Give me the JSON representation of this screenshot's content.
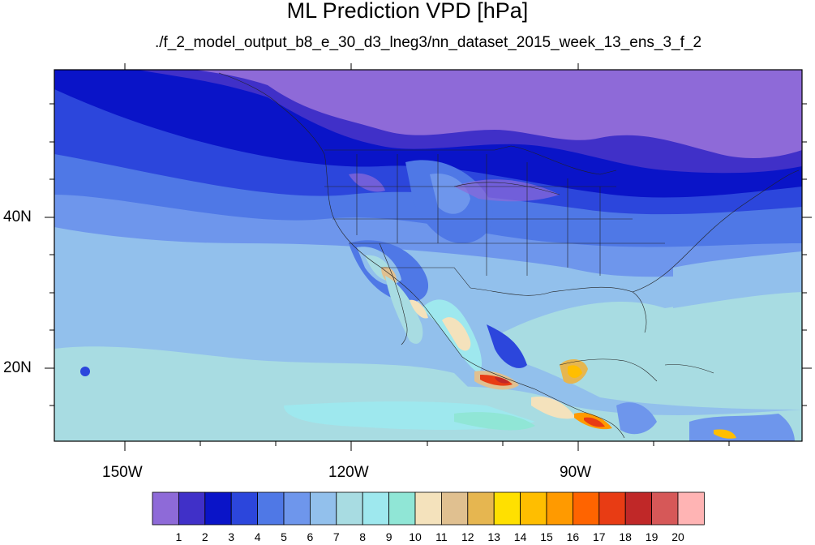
{
  "title": "ML Prediction VPD [hPa]",
  "subtitle": "./f_2_model_output_b8_e_30_d3_lneg3/nn_dataset_2015_week_13_ens_3_f_2",
  "axes": {
    "lon_ticks": [
      "150W",
      "120W",
      "90W"
    ],
    "lat_ticks": [
      "40N",
      "20N"
    ]
  },
  "colorbar": {
    "labels": [
      "1",
      "2",
      "3",
      "4",
      "5",
      "6",
      "7",
      "8",
      "9",
      "10",
      "11",
      "12",
      "13",
      "14",
      "15",
      "16",
      "17",
      "18",
      "19",
      "20"
    ],
    "colors": [
      "#8e6ad8",
      "#4030c8",
      "#0a14c8",
      "#2c46dc",
      "#4f78e6",
      "#6e96ec",
      "#92c0ec",
      "#a8dce2",
      "#9ee8ee",
      "#90e6d6",
      "#f4e2bc",
      "#e0c090",
      "#e6b650",
      "#ffe000",
      "#ffbe00",
      "#ff9a00",
      "#ff6400",
      "#e83c14",
      "#c02828",
      "#d65858",
      "#ffb4b4"
    ]
  }
}
